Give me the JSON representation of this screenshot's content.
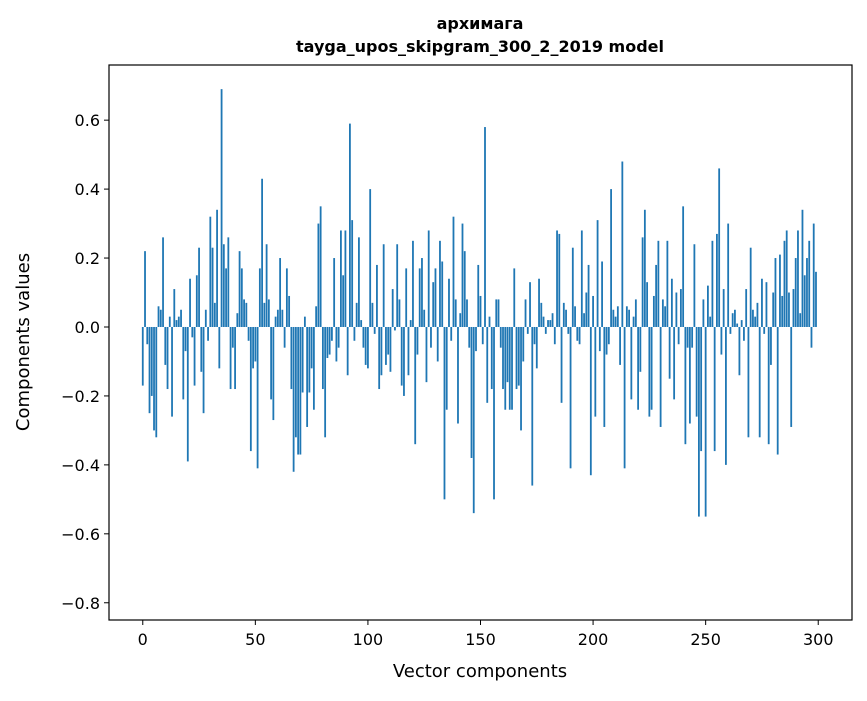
{
  "chart_data": {
    "type": "bar",
    "title_line1": "архимага",
    "title_line2": "tayga_upos_skipgram_300_2_2019 model",
    "xlabel": "Vector components",
    "ylabel": "Components values",
    "xlim": [
      -15,
      315
    ],
    "ylim": [
      -0.85,
      0.76
    ],
    "x_ticks": [
      0,
      50,
      100,
      150,
      200,
      250,
      300
    ],
    "x_tick_labels": [
      "0",
      "50",
      "100",
      "150",
      "200",
      "250",
      "300"
    ],
    "y_ticks": [
      -0.8,
      -0.6,
      -0.4,
      -0.2,
      0.0,
      0.2,
      0.4,
      0.6
    ],
    "y_tick_labels": [
      "−0.8",
      "−0.6",
      "−0.4",
      "−0.2",
      "0.0",
      "0.2",
      "0.4",
      "0.6"
    ],
    "bar_color": "#1f77b4",
    "grid": false,
    "x": "0..299 (one bar per vector component)",
    "values": [
      -0.17,
      0.22,
      -0.05,
      -0.25,
      -0.2,
      -0.3,
      -0.32,
      0.06,
      0.05,
      0.26,
      -0.11,
      -0.18,
      0.03,
      -0.26,
      0.11,
      0.02,
      0.03,
      0.05,
      -0.21,
      -0.07,
      -0.39,
      0.14,
      -0.03,
      -0.17,
      0.15,
      0.23,
      -0.13,
      -0.25,
      0.05,
      -0.04,
      0.32,
      0.23,
      0.07,
      0.34,
      -0.12,
      0.69,
      0.24,
      0.17,
      0.26,
      -0.18,
      -0.06,
      -0.18,
      0.04,
      0.22,
      0.17,
      0.08,
      0.07,
      -0.04,
      -0.36,
      -0.12,
      -0.1,
      -0.41,
      0.17,
      0.43,
      0.07,
      0.24,
      0.08,
      -0.21,
      -0.27,
      0.03,
      0.05,
      0.2,
      0.05,
      -0.06,
      0.17,
      0.09,
      -0.18,
      -0.42,
      -0.32,
      -0.37,
      -0.37,
      -0.19,
      0.03,
      -0.29,
      -0.19,
      -0.12,
      -0.24,
      0.06,
      0.3,
      0.35,
      -0.18,
      -0.32,
      -0.09,
      -0.08,
      -0.04,
      0.2,
      -0.1,
      -0.06,
      0.28,
      0.15,
      0.28,
      -0.14,
      0.59,
      0.31,
      -0.04,
      0.07,
      0.26,
      0.02,
      -0.06,
      -0.11,
      -0.12,
      0.4,
      0.07,
      -0.02,
      0.18,
      -0.18,
      -0.14,
      0.24,
      -0.11,
      -0.08,
      -0.13,
      0.11,
      -0.01,
      0.24,
      0.08,
      -0.17,
      -0.2,
      0.17,
      -0.14,
      0.02,
      0.25,
      -0.34,
      -0.08,
      0.17,
      0.2,
      0.05,
      -0.16,
      0.28,
      -0.06,
      0.13,
      0.17,
      -0.1,
      0.25,
      0.19,
      -0.5,
      -0.24,
      0.14,
      -0.04,
      0.32,
      0.08,
      -0.28,
      0.04,
      0.3,
      0.22,
      0.08,
      -0.06,
      -0.38,
      -0.54,
      -0.07,
      0.18,
      0.09,
      -0.05,
      0.58,
      -0.22,
      0.03,
      -0.18,
      -0.5,
      0.08,
      0.08,
      -0.06,
      -0.18,
      -0.24,
      -0.16,
      -0.24,
      -0.24,
      0.17,
      -0.18,
      -0.17,
      -0.3,
      -0.1,
      0.08,
      -0.02,
      0.13,
      -0.46,
      -0.05,
      -0.12,
      0.14,
      0.07,
      0.03,
      -0.02,
      0.02,
      0.02,
      0.04,
      -0.05,
      0.28,
      0.27,
      -0.22,
      0.07,
      0.05,
      -0.02,
      -0.41,
      0.23,
      0.06,
      -0.04,
      -0.05,
      0.28,
      0.04,
      0.1,
      0.18,
      -0.43,
      0.09,
      -0.26,
      0.31,
      -0.07,
      0.19,
      -0.29,
      -0.08,
      -0.05,
      0.4,
      0.05,
      0.03,
      0.06,
      -0.11,
      0.48,
      -0.41,
      0.06,
      0.05,
      -0.21,
      0.03,
      0.08,
      -0.24,
      -0.13,
      0.26,
      0.34,
      0.13,
      -0.26,
      -0.24,
      0.09,
      0.18,
      0.25,
      -0.29,
      0.08,
      0.06,
      0.25,
      -0.15,
      0.14,
      -0.21,
      0.1,
      -0.05,
      0.11,
      0.35,
      -0.34,
      -0.06,
      -0.28,
      -0.06,
      0.24,
      -0.26,
      -0.55,
      -0.36,
      0.08,
      -0.55,
      0.12,
      0.03,
      0.25,
      -0.36,
      0.27,
      0.46,
      -0.08,
      0.11,
      -0.4,
      0.3,
      -0.02,
      0.04,
      0.05,
      0.01,
      -0.14,
      0.02,
      -0.04,
      0.11,
      -0.32,
      0.23,
      0.05,
      0.03,
      0.07,
      -0.32,
      0.14,
      -0.02,
      0.13,
      -0.34,
      -0.11,
      0.1,
      0.2,
      -0.37,
      0.21,
      0.09,
      0.25,
      0.28,
      0.1,
      -0.29,
      0.11,
      0.2,
      0.28,
      0.04,
      0.34,
      0.15,
      0.2,
      0.25,
      -0.06,
      0.3,
      0.16
    ]
  }
}
